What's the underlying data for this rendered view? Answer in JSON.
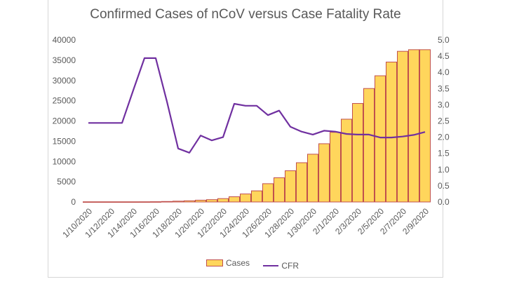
{
  "chart_data": {
    "type": "bar",
    "title": "Confirmed Cases of nCoV versus Case Fatality Rate",
    "x": [
      "1/10/2020",
      "1/11/2020",
      "1/12/2020",
      "1/13/2020",
      "1/14/2020",
      "1/15/2020",
      "1/16/2020",
      "1/17/2020",
      "1/18/2020",
      "1/19/2020",
      "1/20/2020",
      "1/21/2020",
      "1/22/2020",
      "1/23/2020",
      "1/24/2020",
      "1/25/2020",
      "1/26/2020",
      "1/27/2020",
      "1/28/2020",
      "1/29/2020",
      "1/30/2020",
      "1/31/2020",
      "2/1/2020",
      "2/2/2020",
      "2/3/2020",
      "2/4/2020",
      "2/5/2020",
      "2/6/2020",
      "2/7/2020",
      "2/8/2020",
      "2/9/2020"
    ],
    "x_tick_labels": [
      "1/10/2020",
      "1/12/2020",
      "1/14/2020",
      "1/16/2020",
      "1/18/2020",
      "1/20/2020",
      "1/22/2020",
      "1/24/2020",
      "1/26/2020",
      "1/28/2020",
      "1/30/2020",
      "2/1/2020",
      "2/3/2020",
      "2/5/2020",
      "2/7/2020",
      "2/9/2020"
    ],
    "series": [
      {
        "name": "Cases",
        "type": "bar",
        "axis": "left",
        "color": "#ffd65c",
        "edge_color": "#c0504d",
        "values": [
          41,
          41,
          41,
          41,
          41,
          45,
          62,
          121,
          198,
          291,
          440,
          571,
          830,
          1287,
          1975,
          2744,
          4515,
          5974,
          7711,
          9692,
          11791,
          14380,
          17205,
          20438,
          24324,
          28018,
          31161,
          34546,
          37198,
          37600,
          37600
        ]
      },
      {
        "name": "CFR",
        "type": "line",
        "axis": "right",
        "color": "#7030a0",
        "values": [
          2.44,
          2.44,
          2.44,
          2.44,
          3.45,
          4.44,
          4.44,
          3.1,
          1.65,
          1.52,
          2.05,
          1.9,
          2.0,
          3.03,
          2.97,
          2.97,
          2.68,
          2.82,
          2.32,
          2.17,
          2.08,
          2.2,
          2.17,
          2.1,
          2.08,
          2.08,
          1.99,
          1.99,
          2.02,
          2.07,
          2.16
        ]
      }
    ],
    "y_left": {
      "range": [
        0,
        40000
      ],
      "ticks": [
        "0",
        "5000",
        "10000",
        "15000",
        "20000",
        "25000",
        "30000",
        "35000",
        "40000"
      ]
    },
    "y_right": {
      "range": [
        0,
        5.0
      ],
      "ticks": [
        "0.0",
        "0.5",
        "1.0",
        "1.5",
        "2.0",
        "2.5",
        "3.0",
        "3.5",
        "4.0",
        "4.5",
        "5.0"
      ]
    },
    "grid": false,
    "legend": {
      "placement": "bottom",
      "entries": [
        "Cases",
        "CFR"
      ]
    }
  }
}
